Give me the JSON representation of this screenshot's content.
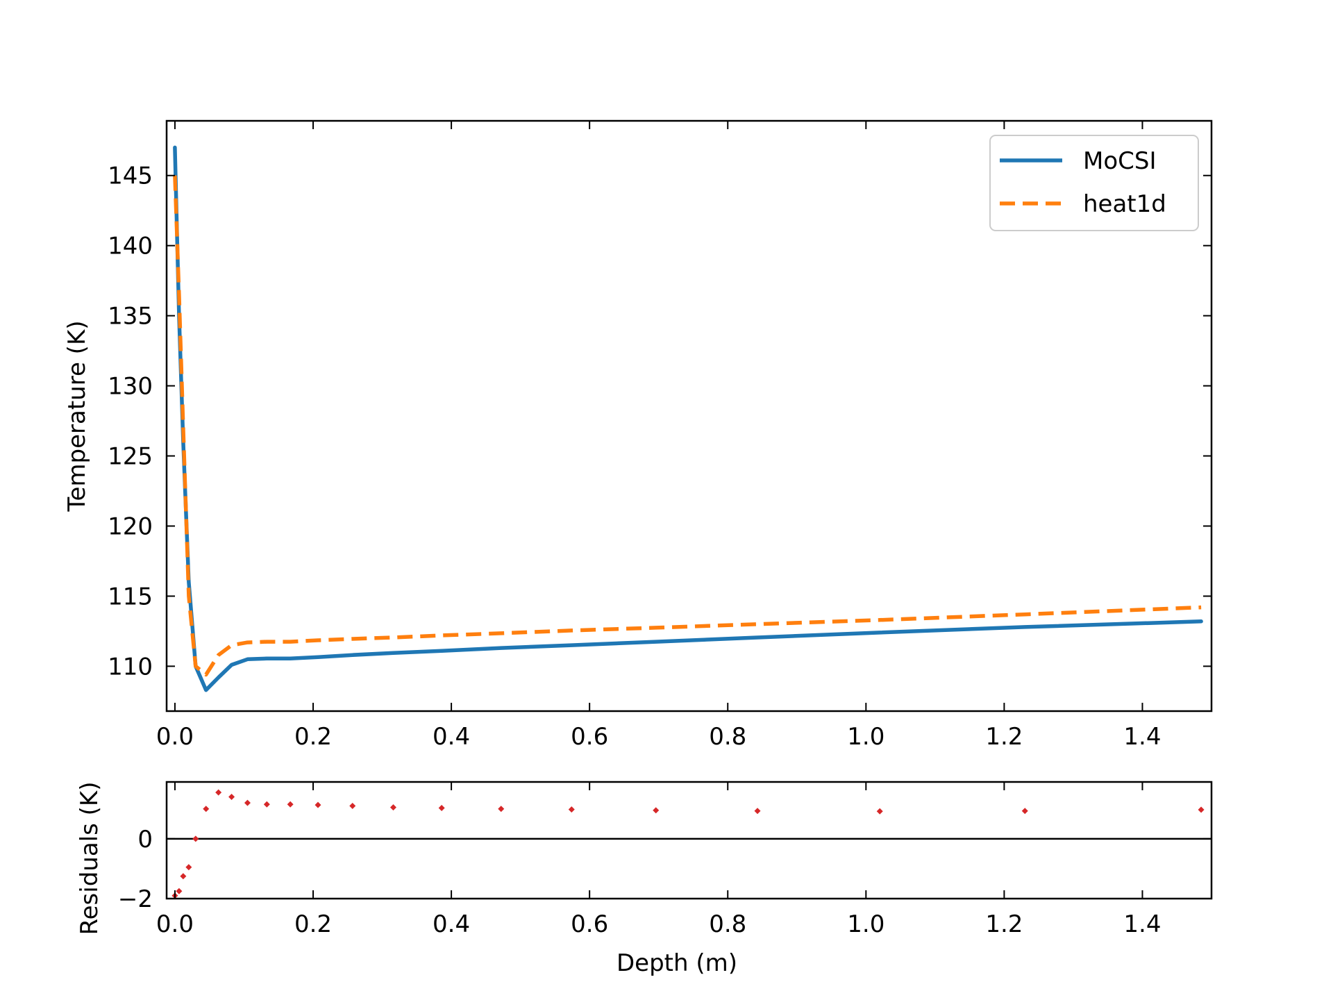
{
  "chart_data": [
    {
      "type": "line",
      "xlabel": "",
      "ylabel": "Temperature (K)",
      "xlim": [
        -0.012,
        1.5
      ],
      "ylim": [
        106.8,
        148.9
      ],
      "xticks": [
        0.0,
        0.2,
        0.4,
        0.6,
        0.8,
        1.0,
        1.2,
        1.4
      ],
      "xtick_labels": [
        "0.0",
        "0.2",
        "0.4",
        "0.6",
        "0.8",
        "1.0",
        "1.2",
        "1.4"
      ],
      "yticks": [
        110,
        115,
        120,
        125,
        130,
        135,
        140,
        145
      ],
      "ytick_labels": [
        "110",
        "115",
        "120",
        "125",
        "130",
        "135",
        "140",
        "145"
      ],
      "legend": "top-right",
      "series": [
        {
          "name": "MoCSI",
          "color": "#1f77b4",
          "style": "solid",
          "x": [
            0.0,
            0.006,
            0.012,
            0.02,
            0.03,
            0.045,
            0.063,
            0.082,
            0.105,
            0.133,
            0.167,
            0.207,
            0.257,
            0.316,
            0.386,
            0.472,
            0.574,
            0.696,
            0.843,
            1.02,
            1.23,
            1.485
          ],
          "y": [
            147.0,
            135.0,
            126.0,
            116.0,
            110.0,
            108.3,
            109.2,
            110.1,
            110.5,
            110.55,
            110.55,
            110.65,
            110.8,
            110.95,
            111.1,
            111.3,
            111.5,
            111.75,
            112.05,
            112.4,
            112.8,
            113.2
          ]
        },
        {
          "name": "heat1d",
          "color": "#ff7f0e",
          "style": "dashed",
          "x": [
            0.0,
            0.006,
            0.012,
            0.02,
            0.03,
            0.045,
            0.063,
            0.082,
            0.105,
            0.133,
            0.167,
            0.207,
            0.257,
            0.316,
            0.386,
            0.472,
            0.574,
            0.696,
            0.843,
            1.02,
            1.23,
            1.485
          ],
          "y": [
            145.0,
            136.5,
            127.0,
            115.0,
            110.0,
            109.4,
            110.8,
            111.5,
            111.7,
            111.75,
            111.75,
            111.85,
            111.95,
            112.05,
            112.2,
            112.35,
            112.55,
            112.75,
            113.0,
            113.3,
            113.7,
            114.2
          ]
        }
      ]
    },
    {
      "type": "scatter",
      "xlabel": "Depth (m)",
      "ylabel": "Residuals (K)",
      "xlim": [
        -0.012,
        1.5
      ],
      "ylim": [
        -2.0,
        1.9
      ],
      "xticks": [
        0.0,
        0.2,
        0.4,
        0.6,
        0.8,
        1.0,
        1.2,
        1.4
      ],
      "xtick_labels": [
        "0.0",
        "0.2",
        "0.4",
        "0.6",
        "0.8",
        "1.0",
        "1.2",
        "1.4"
      ],
      "yticks": [
        -2,
        0
      ],
      "ytick_labels": [
        "−2",
        "0"
      ],
      "reference_line": 0,
      "series": [
        {
          "color": "#d62728",
          "x": [
            0.0,
            0.006,
            0.012,
            0.02,
            0.03,
            0.045,
            0.063,
            0.082,
            0.105,
            0.133,
            0.167,
            0.207,
            0.257,
            0.316,
            0.386,
            0.472,
            0.574,
            0.696,
            0.843,
            1.02,
            1.23,
            1.485
          ],
          "y": [
            -1.9,
            -1.75,
            -1.25,
            -0.95,
            0.0,
            1.0,
            1.55,
            1.4,
            1.2,
            1.15,
            1.15,
            1.13,
            1.1,
            1.05,
            1.03,
            1.0,
            0.98,
            0.95,
            0.93,
            0.92,
            0.93,
            0.97
          ]
        }
      ]
    }
  ]
}
